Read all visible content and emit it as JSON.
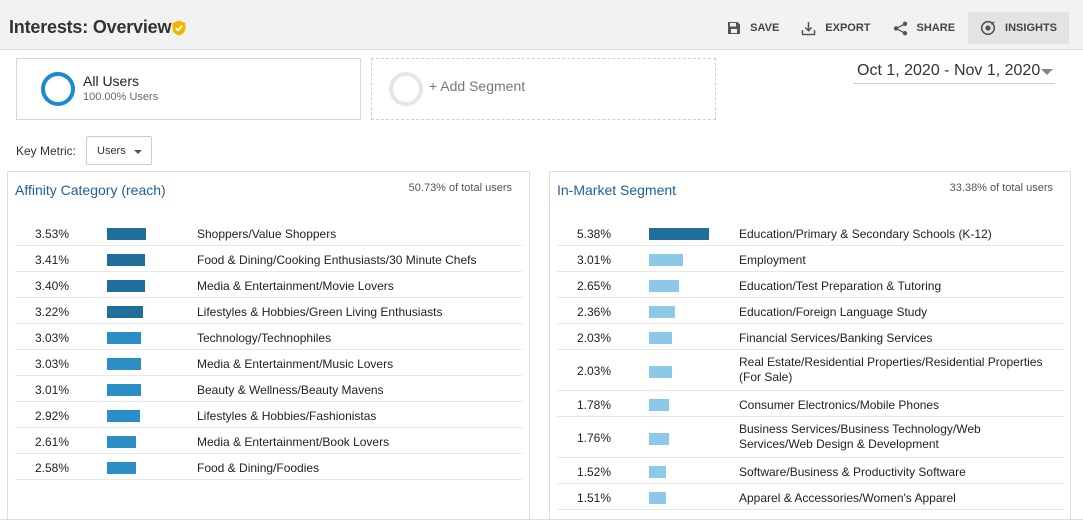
{
  "header": {
    "title": "Interests: Overview",
    "actions": [
      {
        "label": "SAVE",
        "icon": "save-icon"
      },
      {
        "label": "EXPORT",
        "icon": "export-icon"
      },
      {
        "label": "SHARE",
        "icon": "share-icon"
      },
      {
        "label": "INSIGHTS",
        "icon": "insights-icon"
      }
    ]
  },
  "segments": {
    "active": {
      "name": "All Users",
      "sub": "100.00% Users"
    },
    "add": "+ Add Segment"
  },
  "date_range": "Oct 1, 2020 - Nov 1, 2020",
  "key_metric": {
    "label": "Key Metric:",
    "value": "Users"
  },
  "colors": {
    "bar_dark": "#1f6e9c",
    "bar_mid": "#2b8fc6",
    "bar_light": "#8ec8e8",
    "accent": "#1a8ad1",
    "badge": "#f4b400"
  },
  "affinity": {
    "title": "Affinity Category (reach)",
    "share": "50.73% of total users",
    "rows": [
      {
        "pct": "3.53%",
        "value": 3.53,
        "label": "Shoppers/Value Shoppers"
      },
      {
        "pct": "3.41%",
        "value": 3.41,
        "label": "Food & Dining/Cooking Enthusiasts/30 Minute Chefs"
      },
      {
        "pct": "3.40%",
        "value": 3.4,
        "label": "Media & Entertainment/Movie Lovers"
      },
      {
        "pct": "3.22%",
        "value": 3.22,
        "label": "Lifestyles & Hobbies/Green Living Enthusiasts"
      },
      {
        "pct": "3.03%",
        "value": 3.03,
        "label": "Technology/Technophiles"
      },
      {
        "pct": "3.03%",
        "value": 3.03,
        "label": "Media & Entertainment/Music Lovers"
      },
      {
        "pct": "3.01%",
        "value": 3.01,
        "label": "Beauty & Wellness/Beauty Mavens"
      },
      {
        "pct": "2.92%",
        "value": 2.92,
        "label": "Lifestyles & Hobbies/Fashionistas"
      },
      {
        "pct": "2.61%",
        "value": 2.61,
        "label": "Media & Entertainment/Book Lovers"
      },
      {
        "pct": "2.58%",
        "value": 2.58,
        "label": "Food & Dining/Foodies"
      }
    ]
  },
  "inmarket": {
    "title": "In-Market Segment",
    "share": "33.38% of total users",
    "rows": [
      {
        "pct": "5.38%",
        "value": 5.38,
        "label": "Education/Primary & Secondary Schools (K-12)"
      },
      {
        "pct": "3.01%",
        "value": 3.01,
        "label": "Employment"
      },
      {
        "pct": "2.65%",
        "value": 2.65,
        "label": "Education/Test Preparation & Tutoring"
      },
      {
        "pct": "2.36%",
        "value": 2.36,
        "label": "Education/Foreign Language Study"
      },
      {
        "pct": "2.03%",
        "value": 2.03,
        "label": "Financial Services/Banking Services"
      },
      {
        "pct": "2.03%",
        "value": 2.03,
        "label": "Real Estate/Residential Properties/Residential Properties (For Sale)"
      },
      {
        "pct": "1.78%",
        "value": 1.78,
        "label": "Consumer Electronics/Mobile Phones"
      },
      {
        "pct": "1.76%",
        "value": 1.76,
        "label": "Business Services/Business Technology/Web Services/Web Design & Development"
      },
      {
        "pct": "1.52%",
        "value": 1.52,
        "label": "Software/Business & Productivity Software"
      },
      {
        "pct": "1.51%",
        "value": 1.51,
        "label": "Apparel & Accessories/Women's Apparel"
      }
    ]
  }
}
